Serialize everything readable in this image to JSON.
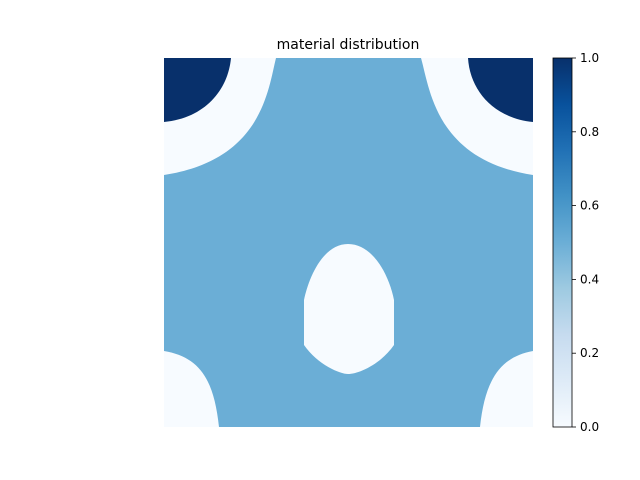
{
  "chart_data": {
    "type": "heatmap",
    "title": "material distribution",
    "xlabel": "",
    "ylabel": "",
    "axes_visible": false,
    "colormap": "Blues",
    "colormap_stops": [
      "#f7fbff",
      "#deebf7",
      "#c6dbef",
      "#9ecae1",
      "#6baed6",
      "#4292c6",
      "#2171b5",
      "#08519c",
      "#08306b"
    ],
    "value_range": [
      0,
      1
    ],
    "levels": {
      "void": 0.0,
      "matrix": 0.5,
      "corner_inclusion": 1.0
    },
    "colorbar": {
      "range": [
        0,
        1
      ],
      "ticks": [
        0.0,
        0.2,
        0.4,
        0.6,
        0.8,
        1.0
      ],
      "tick_labels": [
        "0.0",
        "0.2",
        "0.4",
        "0.6",
        "0.8",
        "1.0"
      ],
      "placement": "right"
    }
  }
}
